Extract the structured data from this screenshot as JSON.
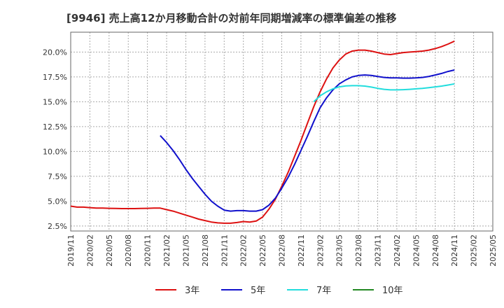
{
  "chart_data": {
    "type": "line",
    "title": "[9946]  売上高12か月移動合計の対前年同期増減率の標準偏差の推移",
    "xlabel": "",
    "ylabel": "",
    "ylim": [
      2.0,
      22.0
    ],
    "yticks": [
      2.5,
      5.0,
      7.5,
      10.0,
      12.5,
      15.0,
      17.5,
      20.0
    ],
    "ytick_labels": [
      "2.5%",
      "5.0%",
      "7.5%",
      "10.0%",
      "12.5%",
      "15.0%",
      "17.5%",
      "20.0%"
    ],
    "xticks": [
      "2019/11",
      "2020/02",
      "2020/05",
      "2020/08",
      "2020/11",
      "2021/02",
      "2021/05",
      "2021/08",
      "2021/11",
      "2022/02",
      "2022/05",
      "2022/08",
      "2022/11",
      "2023/02",
      "2023/05",
      "2023/08",
      "2023/11",
      "2024/02",
      "2024/05",
      "2024/08",
      "2024/11",
      "2025/02",
      "2025/05"
    ],
    "grid": true,
    "legend_position": "bottom",
    "series": [
      {
        "name": "3年",
        "color": "#dd1111",
        "points": [
          [
            "2019/11",
            4.5
          ],
          [
            "2019/12",
            4.4
          ],
          [
            "2020/01",
            4.4
          ],
          [
            "2020/02",
            4.35
          ],
          [
            "2020/03",
            4.3
          ],
          [
            "2020/04",
            4.3
          ],
          [
            "2020/05",
            4.28
          ],
          [
            "2020/06",
            4.27
          ],
          [
            "2020/07",
            4.25
          ],
          [
            "2020/08",
            4.25
          ],
          [
            "2020/09",
            4.25
          ],
          [
            "2020/10",
            4.27
          ],
          [
            "2020/11",
            4.28
          ],
          [
            "2020/12",
            4.3
          ],
          [
            "2021/01",
            4.3
          ],
          [
            "2021/02",
            4.15
          ],
          [
            "2021/03",
            4.0
          ],
          [
            "2021/04",
            3.8
          ],
          [
            "2021/05",
            3.6
          ],
          [
            "2021/06",
            3.4
          ],
          [
            "2021/07",
            3.2
          ],
          [
            "2021/08",
            3.05
          ],
          [
            "2021/09",
            2.9
          ],
          [
            "2021/10",
            2.82
          ],
          [
            "2021/11",
            2.78
          ],
          [
            "2021/12",
            2.78
          ],
          [
            "2022/01",
            2.85
          ],
          [
            "2022/02",
            2.95
          ],
          [
            "2022/03",
            2.9
          ],
          [
            "2022/04",
            3.0
          ],
          [
            "2022/05",
            3.4
          ],
          [
            "2022/06",
            4.2
          ],
          [
            "2022/07",
            5.2
          ],
          [
            "2022/08",
            6.5
          ],
          [
            "2022/09",
            7.9
          ],
          [
            "2022/10",
            9.5
          ],
          [
            "2022/11",
            11.1
          ],
          [
            "2022/12",
            12.8
          ],
          [
            "2023/01",
            14.5
          ],
          [
            "2023/02",
            16.0
          ],
          [
            "2023/03",
            17.3
          ],
          [
            "2023/04",
            18.4
          ],
          [
            "2023/05",
            19.2
          ],
          [
            "2023/06",
            19.8
          ],
          [
            "2023/07",
            20.1
          ],
          [
            "2023/08",
            20.2
          ],
          [
            "2023/09",
            20.2
          ],
          [
            "2023/10",
            20.1
          ],
          [
            "2023/11",
            19.95
          ],
          [
            "2023/12",
            19.8
          ],
          [
            "2024/01",
            19.75
          ],
          [
            "2024/02",
            19.85
          ],
          [
            "2024/03",
            19.95
          ],
          [
            "2024/04",
            20.0
          ],
          [
            "2024/05",
            20.05
          ],
          [
            "2024/06",
            20.1
          ],
          [
            "2024/07",
            20.2
          ],
          [
            "2024/08",
            20.35
          ],
          [
            "2024/09",
            20.55
          ],
          [
            "2024/10",
            20.8
          ],
          [
            "2024/11",
            21.1
          ]
        ]
      },
      {
        "name": "5年",
        "color": "#1111cc",
        "points": [
          [
            "2021/01",
            11.6
          ],
          [
            "2021/02",
            10.9
          ],
          [
            "2021/03",
            10.1
          ],
          [
            "2021/04",
            9.2
          ],
          [
            "2021/05",
            8.2
          ],
          [
            "2021/06",
            7.3
          ],
          [
            "2021/07",
            6.5
          ],
          [
            "2021/08",
            5.7
          ],
          [
            "2021/09",
            5.0
          ],
          [
            "2021/10",
            4.5
          ],
          [
            "2021/11",
            4.1
          ],
          [
            "2021/12",
            4.0
          ],
          [
            "2022/01",
            4.05
          ],
          [
            "2022/02",
            4.05
          ],
          [
            "2022/03",
            4.0
          ],
          [
            "2022/04",
            4.0
          ],
          [
            "2022/05",
            4.15
          ],
          [
            "2022/06",
            4.6
          ],
          [
            "2022/07",
            5.3
          ],
          [
            "2022/08",
            6.3
          ],
          [
            "2022/09",
            7.4
          ],
          [
            "2022/10",
            8.7
          ],
          [
            "2022/11",
            10.1
          ],
          [
            "2022/12",
            11.5
          ],
          [
            "2023/01",
            13.0
          ],
          [
            "2023/02",
            14.4
          ],
          [
            "2023/03",
            15.4
          ],
          [
            "2023/04",
            16.2
          ],
          [
            "2023/05",
            16.8
          ],
          [
            "2023/06",
            17.2
          ],
          [
            "2023/07",
            17.5
          ],
          [
            "2023/08",
            17.65
          ],
          [
            "2023/09",
            17.7
          ],
          [
            "2023/10",
            17.65
          ],
          [
            "2023/11",
            17.55
          ],
          [
            "2023/12",
            17.45
          ],
          [
            "2024/01",
            17.4
          ],
          [
            "2024/02",
            17.4
          ],
          [
            "2024/03",
            17.38
          ],
          [
            "2024/04",
            17.38
          ],
          [
            "2024/05",
            17.4
          ],
          [
            "2024/06",
            17.45
          ],
          [
            "2024/07",
            17.55
          ],
          [
            "2024/08",
            17.7
          ],
          [
            "2024/09",
            17.85
          ],
          [
            "2024/10",
            18.05
          ],
          [
            "2024/11",
            18.2
          ]
        ]
      },
      {
        "name": "7年",
        "color": "#22dddd",
        "points": [
          [
            "2023/01",
            15.0
          ],
          [
            "2023/02",
            15.6
          ],
          [
            "2023/03",
            16.0
          ],
          [
            "2023/04",
            16.3
          ],
          [
            "2023/05",
            16.5
          ],
          [
            "2023/06",
            16.6
          ],
          [
            "2023/07",
            16.62
          ],
          [
            "2023/08",
            16.62
          ],
          [
            "2023/09",
            16.58
          ],
          [
            "2023/10",
            16.48
          ],
          [
            "2023/11",
            16.35
          ],
          [
            "2023/12",
            16.25
          ],
          [
            "2024/01",
            16.2
          ],
          [
            "2024/02",
            16.2
          ],
          [
            "2024/03",
            16.22
          ],
          [
            "2024/04",
            16.25
          ],
          [
            "2024/05",
            16.3
          ],
          [
            "2024/06",
            16.35
          ],
          [
            "2024/07",
            16.42
          ],
          [
            "2024/08",
            16.5
          ],
          [
            "2024/09",
            16.58
          ],
          [
            "2024/10",
            16.68
          ],
          [
            "2024/11",
            16.8
          ]
        ]
      },
      {
        "name": "10年",
        "color": "#228822",
        "points": []
      }
    ]
  }
}
